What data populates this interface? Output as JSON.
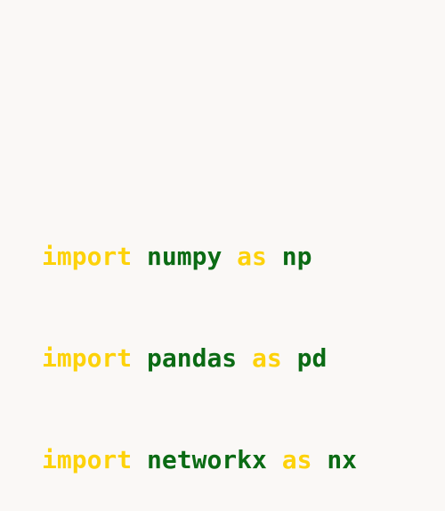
{
  "colors": {
    "background": "#faf8f6",
    "keyword": "#fdd20a",
    "identifier": "#0b6b14"
  },
  "code": {
    "lines": [
      {
        "keyword_import": "import",
        "module": "numpy",
        "keyword_as": "as",
        "alias": "np"
      },
      {
        "keyword_import": "import",
        "module": "pandas",
        "keyword_as": "as",
        "alias": "pd"
      },
      {
        "keyword_import": "import",
        "module": "networkx",
        "keyword_as": "as",
        "alias": "nx"
      }
    ]
  }
}
